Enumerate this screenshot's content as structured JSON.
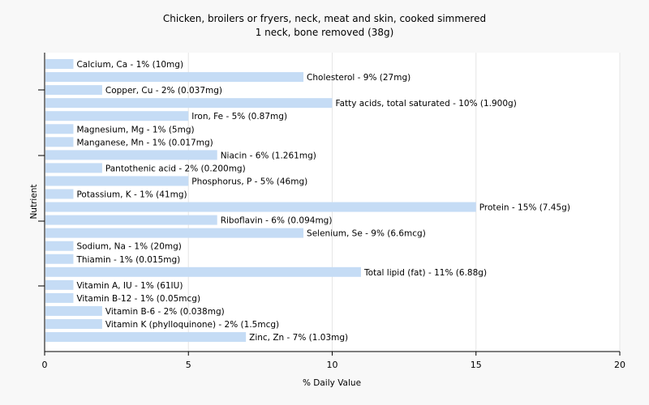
{
  "chart_data": {
    "type": "bar",
    "orientation": "horizontal",
    "title": "Chicken, broilers or fryers, neck, meat and skin, cooked simmered",
    "subtitle": "1 neck, bone removed (38g)",
    "xlabel": "% Daily Value",
    "ylabel": "Nutrient",
    "xlim": [
      0,
      20
    ],
    "xticks": [
      "0",
      "5",
      "10",
      "15",
      "20"
    ],
    "grid": true,
    "bar_color": "#c5dcf5",
    "categories": [
      "Calcium, Ca",
      "Cholesterol",
      "Copper, Cu",
      "Fatty acids, total saturated",
      "Iron, Fe",
      "Magnesium, Mg",
      "Manganese, Mn",
      "Niacin",
      "Pantothenic acid",
      "Phosphorus, P",
      "Potassium, K",
      "Protein",
      "Riboflavin",
      "Selenium, Se",
      "Sodium, Na",
      "Thiamin",
      "Total lipid (fat)",
      "Vitamin A, IU",
      "Vitamin B-12",
      "Vitamin B-6",
      "Vitamin K (phylloquinone)",
      "Zinc, Zn"
    ],
    "values": [
      1,
      9,
      2,
      10,
      5,
      1,
      1,
      6,
      2,
      5,
      1,
      15,
      6,
      9,
      1,
      1,
      11,
      1,
      1,
      2,
      2,
      7
    ],
    "labels": [
      "Calcium, Ca - 1% (10mg)",
      "Cholesterol - 9% (27mg)",
      "Copper, Cu - 2% (0.037mg)",
      "Fatty acids, total saturated - 10% (1.900g)",
      "Iron, Fe - 5% (0.87mg)",
      "Magnesium, Mg - 1% (5mg)",
      "Manganese, Mn - 1% (0.017mg)",
      "Niacin - 6% (1.261mg)",
      "Pantothenic acid - 2% (0.200mg)",
      "Phosphorus, P - 5% (46mg)",
      "Potassium, K - 1% (41mg)",
      "Protein - 15% (7.45g)",
      "Riboflavin - 6% (0.094mg)",
      "Selenium, Se - 9% (6.6mcg)",
      "Sodium, Na - 1% (20mg)",
      "Thiamin - 1% (0.015mg)",
      "Total lipid (fat) - 11% (6.88g)",
      "Vitamin A, IU - 1% (61IU)",
      "Vitamin B-12 - 1% (0.05mcg)",
      "Vitamin B-6 - 2% (0.038mg)",
      "Vitamin K (phylloquinone) - 2% (1.5mcg)",
      "Zinc, Zn - 7% (1.03mg)"
    ]
  }
}
